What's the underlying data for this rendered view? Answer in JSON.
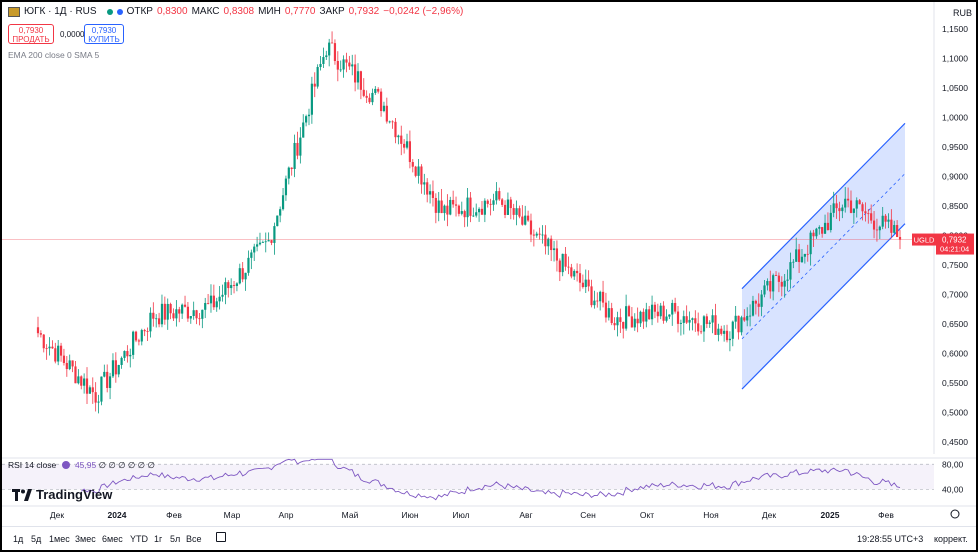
{
  "header": {
    "symbol": "ЮГК · 1Д · RUS",
    "open_label": "ОТКР",
    "open_value": "0,8300",
    "high_label": "МАКС",
    "high_value": "0,8308",
    "low_label": "МИН",
    "low_value": "0,7770",
    "close_label": "ЗАКР",
    "close_value": "0,7932",
    "change": "−0,0242 (−2,96%)"
  },
  "trade": {
    "sell_price": "0,7930",
    "sell_label": "ПРОДАТЬ",
    "spread": "0,0000",
    "buy_price": "0,7930",
    "buy_label": "КУПИТЬ"
  },
  "indicators": {
    "ema_label": "EMA 200 close 0 SMA 5"
  },
  "currency": "RUB",
  "price_tag": {
    "ticker": "UGLD",
    "price": "0,7932",
    "countdown": "04:21:04"
  },
  "rsi": {
    "label": "RSI 14 close",
    "value": "45,95",
    "placeholders": "∅ ∅ ∅ ∅ ∅ ∅",
    "levels": [
      "80,00",
      "40,00"
    ]
  },
  "logo": "TradingView",
  "colors": {
    "up": "#089981",
    "down": "#f23645",
    "channel": "#2962ff",
    "rsi": "#7e57c2"
  },
  "toolbar": {
    "ranges": [
      "1д",
      "5д",
      "1мес",
      "3мес",
      "6мес",
      "YTD",
      "1г",
      "5л",
      "Все"
    ],
    "time": "19:28:55 UTC+3",
    "adjust": "коррект."
  },
  "chart_data": {
    "type": "candlestick",
    "y_axis_ticks": [
      "1,1500",
      "1,1000",
      "1,0500",
      "1,0000",
      "0,9500",
      "0,9000",
      "0,8500",
      "0,8000",
      "0,7500",
      "0,7000",
      "0,6500",
      "0,6000",
      "0,5500",
      "0,5000",
      "0,4500"
    ],
    "ylim": [
      0.43,
      1.165
    ],
    "x_axis_ticks": [
      "Дек",
      "2024",
      "Фев",
      "Мар",
      "Апр",
      "Май",
      "Июн",
      "Июл",
      "Авг",
      "Сен",
      "Окт",
      "Ноя",
      "Дек",
      "2025",
      "Фев"
    ],
    "last_price": 0.7932,
    "price_path_by_month": [
      {
        "month": "Дек 2023",
        "start": 0.635,
        "end": 0.53
      },
      {
        "month": "Янв 2024",
        "start": 0.53,
        "end": 0.665
      },
      {
        "month": "Фев 2024",
        "start": 0.665,
        "end": 0.68
      },
      {
        "month": "Мар 2024",
        "start": 0.68,
        "end": 0.79
      },
      {
        "month": "Апр 2024",
        "start": 0.79,
        "end": 1.12
      },
      {
        "month": "Май 2024",
        "start": 1.12,
        "end": 1.02
      },
      {
        "month": "Июн 2024",
        "start": 1.02,
        "end": 0.84
      },
      {
        "month": "Июл 2024",
        "start": 0.84,
        "end": 0.86
      },
      {
        "month": "Авг 2024",
        "start": 0.86,
        "end": 0.76
      },
      {
        "month": "Сен 2024",
        "start": 0.76,
        "end": 0.66
      },
      {
        "month": "Окт 2024",
        "start": 0.66,
        "end": 0.67
      },
      {
        "month": "Ноя 2024",
        "start": 0.67,
        "end": 0.64
      },
      {
        "month": "Дек 2024",
        "start": 0.64,
        "end": 0.74
      },
      {
        "month": "Янв 2025",
        "start": 0.74,
        "end": 0.86
      },
      {
        "month": "Фев 2025",
        "start": 0.86,
        "end": 0.7932
      }
    ]
  }
}
